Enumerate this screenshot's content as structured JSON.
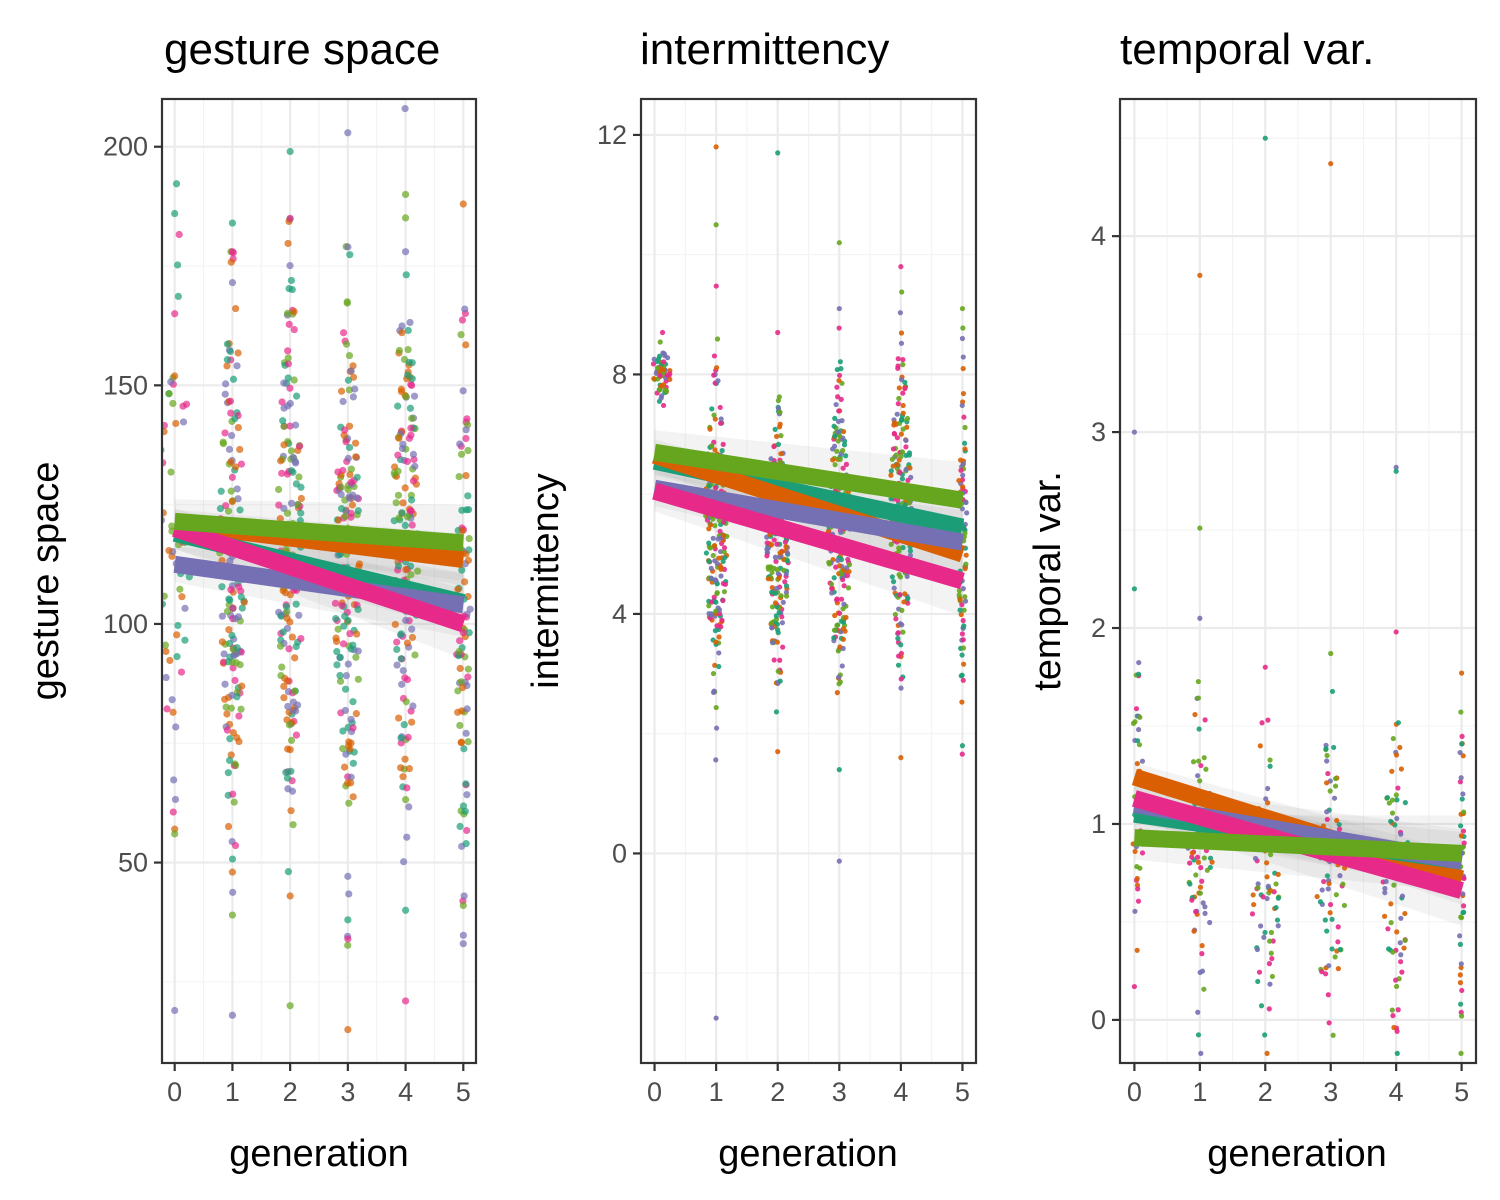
{
  "palette": [
    "#1b9e77",
    "#d95f02",
    "#7570b3",
    "#e7298a",
    "#66a61e"
  ],
  "chart_data": [
    {
      "type": "scatter",
      "title": "gesture space",
      "xlabel": "generation",
      "ylabel": "gesture space",
      "xlim": [
        -0.22,
        5.22
      ],
      "ylim": [
        8,
        210
      ],
      "xticks": [
        0,
        1,
        2,
        3,
        4,
        5
      ],
      "yticks": [
        50,
        100,
        150,
        200
      ],
      "grid": true,
      "legend": "none",
      "point_radius": 3.6,
      "point_opacity": 0.7,
      "point_clusters": [
        {
          "x": 0,
          "mean": 125,
          "sd": 28,
          "n": 55,
          "spread": 0.28,
          "seed": 11
        },
        {
          "x": 1,
          "mean": 112,
          "sd": 28,
          "n": 170,
          "spread": 0.22,
          "seed": 12
        },
        {
          "x": 2,
          "mean": 115,
          "sd": 27,
          "n": 170,
          "spread": 0.22,
          "seed": 13
        },
        {
          "x": 3,
          "mean": 110,
          "sd": 28,
          "n": 170,
          "spread": 0.22,
          "seed": 14
        },
        {
          "x": 4,
          "mean": 118,
          "sd": 28,
          "n": 170,
          "spread": 0.22,
          "seed": 15
        },
        {
          "x": 5,
          "mean": 105,
          "sd": 32,
          "n": 90,
          "spread": 0.12,
          "seed": 16
        }
      ],
      "outliers": [
        {
          "x": 0,
          "y": 186
        },
        {
          "x": 0,
          "y": 165
        },
        {
          "x": 0,
          "y": 57
        },
        {
          "x": 0,
          "y": 56
        },
        {
          "x": 0,
          "y": 19
        },
        {
          "x": 1,
          "y": 184
        },
        {
          "x": 1,
          "y": 178
        },
        {
          "x": 1,
          "y": 48
        },
        {
          "x": 1,
          "y": 39
        },
        {
          "x": 1,
          "y": 18
        },
        {
          "x": 2,
          "y": 199
        },
        {
          "x": 2,
          "y": 185
        },
        {
          "x": 2,
          "y": 43
        },
        {
          "x": 2,
          "y": 20
        },
        {
          "x": 3,
          "y": 179
        },
        {
          "x": 3,
          "y": 38
        },
        {
          "x": 3,
          "y": 34
        },
        {
          "x": 3,
          "y": 15
        },
        {
          "x": 4,
          "y": 190
        },
        {
          "x": 4,
          "y": 178
        },
        {
          "x": 4,
          "y": 40
        },
        {
          "x": 4,
          "y": 21
        },
        {
          "x": 5,
          "y": 188
        },
        {
          "x": 5,
          "y": 41
        },
        {
          "x": 5,
          "y": 33
        }
      ],
      "trend_lines": [
        {
          "start": [
            0,
            121
          ],
          "end": [
            5,
            113.5
          ],
          "color": "#d95f02"
        },
        {
          "start": [
            0,
            119
          ],
          "end": [
            5,
            104.5
          ],
          "color": "#1b9e77"
        },
        {
          "start": [
            0,
            112.5
          ],
          "end": [
            5,
            104
          ],
          "color": "#7570b3"
        },
        {
          "start": [
            0,
            120
          ],
          "end": [
            5,
            100
          ],
          "color": "#e7298a"
        },
        {
          "start": [
            0,
            121.5
          ],
          "end": [
            5,
            117
          ],
          "color": "#66a61e"
        }
      ]
    },
    {
      "type": "scatter",
      "title": "intermittency",
      "xlabel": "generation",
      "ylabel": "intermittency",
      "xlim": [
        -0.22,
        5.22
      ],
      "ylim": [
        -3.5,
        12.6
      ],
      "xticks": [
        0,
        1,
        2,
        3,
        4,
        5
      ],
      "yticks": [
        0,
        4,
        8,
        12
      ],
      "grid": true,
      "legend": "none",
      "point_radius": 2.6,
      "point_opacity": 0.9,
      "point_clusters": [
        {
          "x": 0.12,
          "mean": 8.05,
          "sd": 0.25,
          "n": 60,
          "spread": 0.16,
          "seed": 21
        },
        {
          "x": 1,
          "mean": 5.4,
          "sd": 1.3,
          "n": 200,
          "spread": 0.18,
          "seed": 22
        },
        {
          "x": 2,
          "mean": 5.2,
          "sd": 1.1,
          "n": 200,
          "spread": 0.18,
          "seed": 23
        },
        {
          "x": 3,
          "mean": 5.3,
          "sd": 1.2,
          "n": 200,
          "spread": 0.18,
          "seed": 24
        },
        {
          "x": 4,
          "mean": 5.7,
          "sd": 1.3,
          "n": 200,
          "spread": 0.18,
          "seed": 25
        },
        {
          "x": 5,
          "mean": 5.5,
          "sd": 1.3,
          "n": 90,
          "spread": 0.07,
          "seed": 26
        }
      ],
      "outliers": [
        {
          "x": 1,
          "y": 11.8
        },
        {
          "x": 1,
          "y": 10.5
        },
        {
          "x": 1,
          "y": -2.75
        },
        {
          "x": 2,
          "y": 11.7
        },
        {
          "x": 2,
          "y": 8.7
        },
        {
          "x": 2,
          "y": 1.7
        },
        {
          "x": 3,
          "y": 10.2
        },
        {
          "x": 3,
          "y": 9.1
        },
        {
          "x": 3,
          "y": 1.4
        },
        {
          "x": 4,
          "y": 9.8
        },
        {
          "x": 4,
          "y": 1.6
        },
        {
          "x": 5,
          "y": 9.1
        },
        {
          "x": 5,
          "y": 8.6
        },
        {
          "x": 5,
          "y": 1.8
        }
      ],
      "trend_lines": [
        {
          "start": [
            0,
            6.55
          ],
          "end": [
            5,
            5.45
          ],
          "color": "#1b9e77"
        },
        {
          "start": [
            0,
            6.65
          ],
          "end": [
            5,
            5.0
          ],
          "color": "#d95f02"
        },
        {
          "start": [
            0,
            6.1
          ],
          "end": [
            5,
            5.2
          ],
          "color": "#7570b3"
        },
        {
          "start": [
            0,
            6.05
          ],
          "end": [
            5,
            4.55
          ],
          "color": "#e7298a"
        },
        {
          "start": [
            0,
            6.7
          ],
          "end": [
            5,
            5.9
          ],
          "color": "#66a61e"
        }
      ]
    },
    {
      "type": "scatter",
      "title": "temporal var.",
      "xlabel": "generation",
      "ylabel": "temporal var.",
      "xlim": [
        -0.22,
        5.22
      ],
      "ylim": [
        -0.22,
        4.7
      ],
      "xticks": [
        0,
        1,
        2,
        3,
        4,
        5
      ],
      "yticks": [
        0,
        1,
        2,
        3,
        4
      ],
      "grid": true,
      "legend": "none",
      "point_radius": 2.6,
      "point_opacity": 0.9,
      "point_clusters": [
        {
          "x": 0.05,
          "mean": 1.1,
          "sd": 0.35,
          "n": 45,
          "spread": 0.1,
          "seed": 31
        },
        {
          "x": 1,
          "mean": 0.85,
          "sd": 0.4,
          "n": 80,
          "spread": 0.2,
          "seed": 32
        },
        {
          "x": 2,
          "mean": 0.7,
          "sd": 0.38,
          "n": 70,
          "spread": 0.22,
          "seed": 33
        },
        {
          "x": 3,
          "mean": 0.65,
          "sd": 0.4,
          "n": 70,
          "spread": 0.22,
          "seed": 34
        },
        {
          "x": 4,
          "mean": 0.75,
          "sd": 0.4,
          "n": 70,
          "spread": 0.2,
          "seed": 35
        },
        {
          "x": 5,
          "mean": 0.75,
          "sd": 0.4,
          "n": 45,
          "spread": 0.05,
          "seed": 36
        }
      ],
      "outliers": [
        {
          "x": 0,
          "y": 3.0
        },
        {
          "x": 0,
          "y": 2.2
        },
        {
          "x": 0,
          "y": 0.17
        },
        {
          "x": 1,
          "y": 3.8
        },
        {
          "x": 1,
          "y": 2.51
        },
        {
          "x": 1,
          "y": 2.05
        },
        {
          "x": 2,
          "y": 4.5
        },
        {
          "x": 2,
          "y": 1.8
        },
        {
          "x": 3,
          "y": 4.37
        },
        {
          "x": 3,
          "y": 1.87
        },
        {
          "x": 4,
          "y": 2.82
        },
        {
          "x": 4,
          "y": 2.8
        },
        {
          "x": 4,
          "y": 1.98
        },
        {
          "x": 5,
          "y": 1.77
        },
        {
          "x": 5,
          "y": 0.02
        }
      ],
      "trend_lines": [
        {
          "start": [
            0,
            1.24
          ],
          "end": [
            5,
            0.72
          ],
          "color": "#d95f02"
        },
        {
          "start": [
            0,
            1.05
          ],
          "end": [
            5,
            0.81
          ],
          "color": "#1b9e77"
        },
        {
          "start": [
            0,
            1.1
          ],
          "end": [
            5,
            0.81
          ],
          "color": "#7570b3"
        },
        {
          "start": [
            0,
            1.13
          ],
          "end": [
            5,
            0.66
          ],
          "color": "#e7298a"
        },
        {
          "start": [
            0,
            0.93
          ],
          "end": [
            5,
            0.85
          ],
          "color": "#66a61e"
        }
      ]
    }
  ]
}
